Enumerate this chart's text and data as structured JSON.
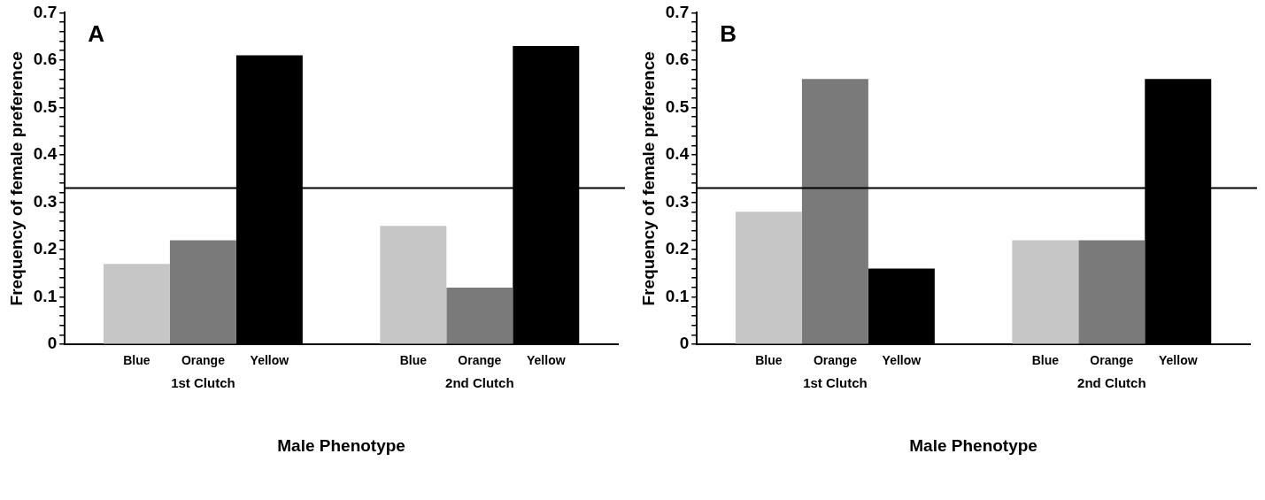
{
  "chart_data": [
    {
      "type": "bar",
      "title": "A",
      "xlabel": "Male Phenotype",
      "ylabel": "Frequency of female preference",
      "categories": [
        "1st Clutch",
        "2nd Clutch"
      ],
      "series": [
        {
          "name": "Blue",
          "color": "#c6c6c6",
          "values": [
            0.17,
            0.25
          ]
        },
        {
          "name": "Orange",
          "color": "#7a7a7a",
          "values": [
            0.22,
            0.12
          ]
        },
        {
          "name": "Yellow",
          "color": "#000000",
          "values": [
            0.61,
            0.63
          ]
        }
      ],
      "ylim": [
        0,
        0.7
      ],
      "yticks": [
        0,
        {
          "value": 0.02,
          "label": null
        },
        {
          "value": 0.04,
          "label": null
        },
        {
          "value": 0.06,
          "label": null
        },
        {
          "value": 0.08,
          "label": null
        },
        0.1,
        {
          "value": 0.12,
          "label": null
        },
        {
          "value": 0.14,
          "label": null
        },
        {
          "value": 0.16,
          "label": null
        },
        {
          "value": 0.18,
          "label": null
        },
        0.2,
        {
          "value": 0.22,
          "label": null
        },
        {
          "value": 0.24,
          "label": null
        },
        {
          "value": 0.26,
          "label": null
        },
        {
          "value": 0.28,
          "label": null
        },
        0.3,
        {
          "value": 0.32,
          "label": null
        },
        {
          "value": 0.34,
          "label": null
        },
        {
          "value": 0.36,
          "label": null
        },
        {
          "value": 0.38,
          "label": null
        },
        0.4,
        {
          "value": 0.42,
          "label": null
        },
        {
          "value": 0.44,
          "label": null
        },
        {
          "value": 0.46,
          "label": null
        },
        {
          "value": 0.48,
          "label": null
        },
        0.5,
        {
          "value": 0.52,
          "label": null
        },
        {
          "value": 0.54,
          "label": null
        },
        {
          "value": 0.56,
          "label": null
        },
        {
          "value": 0.58,
          "label": null
        },
        0.6,
        {
          "value": 0.62,
          "label": null
        },
        {
          "value": 0.64,
          "label": null
        },
        {
          "value": 0.66,
          "label": null
        },
        {
          "value": 0.68,
          "label": null
        },
        0.7
      ],
      "ref_lines": [
        {
          "axis": "y",
          "value": 0.33,
          "label": null,
          "color": "#000000"
        }
      ],
      "grid": false,
      "legend": false
    },
    {
      "type": "bar",
      "title": "B",
      "xlabel": "Male Phenotype",
      "ylabel": "Frequency of female preference",
      "categories": [
        "1st Clutch",
        "2nd Clutch"
      ],
      "series": [
        {
          "name": "Blue",
          "color": "#c6c6c6",
          "values": [
            0.28,
            0.22
          ]
        },
        {
          "name": "Orange",
          "color": "#7a7a7a",
          "values": [
            0.56,
            0.22
          ]
        },
        {
          "name": "Yellow",
          "color": "#000000",
          "values": [
            0.16,
            0.56
          ]
        }
      ],
      "ylim": [
        0,
        0.7
      ],
      "yticks": [
        0,
        {
          "value": 0.02,
          "label": null
        },
        {
          "value": 0.04,
          "label": null
        },
        {
          "value": 0.06,
          "label": null
        },
        {
          "value": 0.08,
          "label": null
        },
        0.1,
        {
          "value": 0.12,
          "label": null
        },
        {
          "value": 0.14,
          "label": null
        },
        {
          "value": 0.16,
          "label": null
        },
        {
          "value": 0.18,
          "label": null
        },
        0.2,
        {
          "value": 0.22,
          "label": null
        },
        {
          "value": 0.24,
          "label": null
        },
        {
          "value": 0.26,
          "label": null
        },
        {
          "value": 0.28,
          "label": null
        },
        0.3,
        {
          "value": 0.32,
          "label": null
        },
        {
          "value": 0.34,
          "label": null
        },
        {
          "value": 0.36,
          "label": null
        },
        {
          "value": 0.38,
          "label": null
        },
        0.4,
        {
          "value": 0.42,
          "label": null
        },
        {
          "value": 0.44,
          "label": null
        },
        {
          "value": 0.46,
          "label": null
        },
        {
          "value": 0.48,
          "label": null
        },
        0.5,
        {
          "value": 0.52,
          "label": null
        },
        {
          "value": 0.54,
          "label": null
        },
        {
          "value": 0.56,
          "label": null
        },
        {
          "value": 0.58,
          "label": null
        },
        0.6,
        {
          "value": 0.62,
          "label": null
        },
        {
          "value": 0.64,
          "label": null
        },
        {
          "value": 0.66,
          "label": null
        },
        {
          "value": 0.68,
          "label": null
        },
        0.7
      ],
      "ref_lines": [
        {
          "axis": "y",
          "value": 0.33,
          "label": null,
          "color": "#000000"
        }
      ],
      "grid": false,
      "legend": false
    }
  ]
}
